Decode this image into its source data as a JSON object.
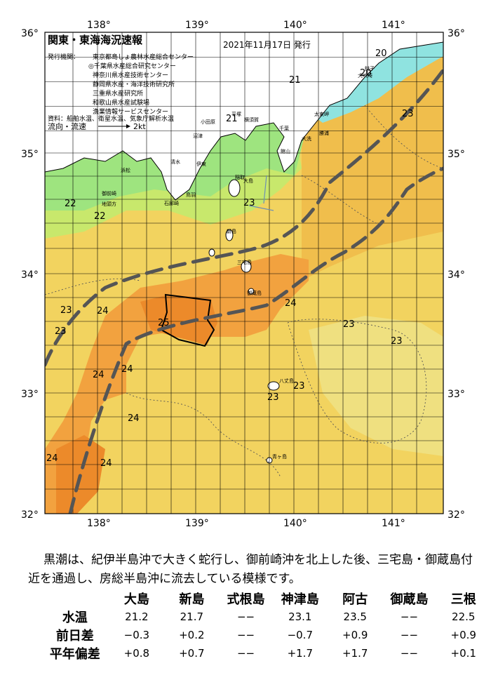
{
  "header": {
    "title": "関東・東海海況速報",
    "issue_date": "2021年11月17日 発行"
  },
  "legend": {
    "agencies_label": "発行機関：",
    "agencies": [
      "東京都島しょ農林水産総合センター",
      "◎千葉県水産総合研究センター",
      "神奈川県水産技術センター",
      "静岡県水産・海洋技術研究所",
      "三重県水産研究所",
      "和歌山県水産試験場",
      "漁業情報サービスセンター"
    ],
    "source": "資料：船舶水温、衛星水温、気象庁解析水温",
    "flow_label": "流向・流速",
    "flow_scale": "2kt"
  },
  "axes": {
    "lon_labels": [
      "138°",
      "139°",
      "140°",
      "141°"
    ],
    "lat_labels_left": [
      "36°",
      "35°",
      "34°",
      "33°",
      "32°"
    ],
    "lat_labels_right": [
      "36°",
      "35°",
      "34°",
      "33°",
      "32°"
    ]
  },
  "place_labels": [
    "大島",
    "新島",
    "八丈島",
    "三宅島",
    "御蔵島",
    "千葉",
    "銚子",
    "勝浦",
    "館山",
    "大洗",
    "太東岬",
    "小田原",
    "伊東",
    "石廊崎",
    "御前崎",
    "浜松",
    "地頭方",
    "清水",
    "沼津",
    "平塚",
    "横須賀",
    "稲取",
    "青ヶ島",
    "犬吠埼",
    "鳥羽"
  ],
  "temperature_labels": [
    "20",
    "20",
    "21",
    "21",
    "22",
    "22",
    "23",
    "23",
    "23",
    "23",
    "23",
    "23",
    "23",
    "23",
    "24",
    "24",
    "24",
    "24",
    "24",
    "24",
    "24",
    "25"
  ],
  "colors": {
    "kuroshio_axis": "#555555",
    "temp_20": "#8fe3e0",
    "temp_21": "#a8e890",
    "temp_22": "#cbe86a",
    "temp_23": "#f2d35f",
    "temp_24": "#f2a23f",
    "temp_25": "#ec8a2a",
    "land": "#ffffff"
  },
  "description": "黒潮は、紀伊半島沖で大きく蛇行し、御前崎沖を北上した後、三宅島・御蔵島付近を通過し、房総半島沖に流去している模様です。",
  "stats": {
    "stations": [
      "大島",
      "新島",
      "式根島",
      "神津島",
      "阿古",
      "御蔵島",
      "三根"
    ],
    "rows": [
      {
        "label": "水温",
        "values": [
          "21.2",
          "21.7",
          "−−",
          "23.1",
          "23.5",
          "−−",
          "22.5"
        ]
      },
      {
        "label": "前日差",
        "values": [
          "−0.3",
          "+0.2",
          "−−",
          "−0.7",
          "+0.9",
          "−−",
          "+0.9"
        ]
      },
      {
        "label": "平年偏差",
        "values": [
          "+0.8",
          "+0.7",
          "−−",
          "+1.7",
          "+1.7",
          "−−",
          "+0.1"
        ]
      }
    ]
  }
}
